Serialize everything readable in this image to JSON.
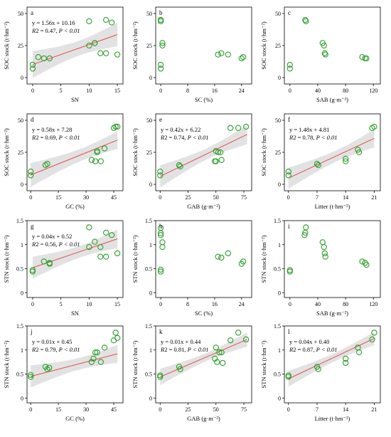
{
  "colors": {
    "points": "#2ca02c",
    "fit_line": "#e05050",
    "ci_band": "#e2e2e2",
    "axis": "#000000"
  },
  "chart_data": [
    {
      "type": "scatter",
      "label": "a",
      "xlabel": "SN",
      "ylabel": "SOC stock (t·hm⁻²)",
      "xlim": [
        -1,
        16
      ],
      "ylim": [
        -5,
        55
      ],
      "xticks": [
        0,
        5,
        10,
        15
      ],
      "yticks": [
        0,
        25,
        50
      ],
      "equation": "y = 1.56x + 10.16",
      "r2_prefix": "R",
      "r2_value": "2 = 0.47, ",
      "p_text": "P < 0.01",
      "fit": {
        "slope": 1.56,
        "intercept": 10.16,
        "x_range": [
          0,
          15
        ]
      },
      "x": [
        0,
        0,
        1,
        2,
        3,
        10,
        10,
        11,
        11,
        12,
        13,
        13,
        14,
        15
      ],
      "y": [
        7,
        10,
        16,
        15,
        15,
        25,
        44,
        27,
        27,
        19,
        45,
        19,
        43,
        18
      ]
    },
    {
      "type": "scatter",
      "label": "b",
      "xlabel": "SC (%)",
      "ylabel": "SOC stock (t·hm⁻²)",
      "xlim": [
        -1.5,
        27
      ],
      "ylim": [
        -5,
        55
      ],
      "xticks": [
        0,
        8,
        16,
        24
      ],
      "yticks": [
        0,
        25,
        50
      ],
      "equation": "",
      "r2_prefix": "",
      "r2_value": "",
      "p_text": "",
      "fit": null,
      "x": [
        0,
        0,
        0,
        0,
        0,
        0.5,
        0.5,
        17,
        18,
        20,
        24,
        24.5
      ],
      "y": [
        7,
        10,
        44,
        45,
        45,
        27,
        25,
        18,
        19,
        18,
        15,
        16
      ]
    },
    {
      "type": "scatter",
      "label": "c",
      "xlabel": "SAB (g·m⁻²)",
      "ylabel": "SOC stock (t·hm⁻²)",
      "xlim": [
        -8,
        130
      ],
      "ylim": [
        -5,
        55
      ],
      "xticks": [
        0,
        40,
        80,
        120
      ],
      "yticks": [
        0,
        25,
        50
      ],
      "equation": "",
      "r2_prefix": "",
      "r2_value": "",
      "p_text": "",
      "fit": null,
      "x": [
        0,
        0,
        22,
        23,
        47,
        49,
        50,
        51,
        104,
        108,
        110
      ],
      "y": [
        7,
        10,
        45,
        44,
        27,
        25,
        19,
        18,
        16,
        15,
        15
      ]
    },
    {
      "type": "scatter",
      "label": "d",
      "xlabel": "GC (%)",
      "ylabel": "SOC stock (t·hm⁻²)",
      "xlim": [
        -2,
        50
      ],
      "ylim": [
        -5,
        55
      ],
      "xticks": [
        0,
        15,
        30,
        45
      ],
      "yticks": [
        0,
        25,
        50
      ],
      "equation": "y = 0.58x + 7.28",
      "r2_prefix": "R",
      "r2_value": "2 = 0.69, ",
      "p_text": "P < 0.01",
      "fit": {
        "slope": 0.58,
        "intercept": 7.28,
        "x_range": [
          0,
          47
        ]
      },
      "x": [
        0,
        0,
        8,
        9,
        33,
        35,
        36,
        36,
        38,
        40,
        45,
        46,
        47
      ],
      "y": [
        7,
        10,
        15,
        16,
        19,
        18,
        25,
        26,
        18,
        28,
        44,
        45,
        45
      ]
    },
    {
      "type": "scatter",
      "label": "e",
      "xlabel": "GAB (g·m⁻²)",
      "ylabel": "SOC stock (t·hm⁻²)",
      "xlim": [
        -4,
        82
      ],
      "ylim": [
        -5,
        55
      ],
      "xticks": [
        0,
        25,
        50,
        75
      ],
      "yticks": [
        0,
        25,
        50
      ],
      "equation": "y = 0.42x + 6.22",
      "r2_prefix": "R",
      "r2_value": "2 = 0.74, ",
      "p_text": "P < 0.01",
      "fit": {
        "slope": 0.42,
        "intercept": 6.22,
        "x_range": [
          0,
          78
        ]
      },
      "x": [
        0,
        0,
        17,
        18,
        49,
        50,
        50,
        52,
        54,
        55,
        63,
        70,
        77
      ],
      "y": [
        7,
        10,
        15,
        14,
        18,
        26,
        18,
        25,
        25,
        19,
        44,
        44,
        45
      ]
    },
    {
      "type": "scatter",
      "label": "f",
      "xlabel": "Litter (t·hm⁻²)",
      "ylabel": "SOC stock (t·hm⁻²)",
      "xlim": [
        -1,
        22.5
      ],
      "ylim": [
        -5,
        55
      ],
      "xticks": [
        0,
        7,
        14,
        21
      ],
      "yticks": [
        0,
        25,
        50
      ],
      "equation": "y = 1.48x + 4.81",
      "r2_prefix": "R",
      "r2_value": "2 = 0.78, ",
      "p_text": "P < 0.01",
      "fit": {
        "slope": 1.48,
        "intercept": 4.81,
        "x_range": [
          0,
          21
        ]
      },
      "x": [
        0,
        0,
        7,
        7.3,
        14,
        14,
        17,
        17.3,
        20.5,
        21
      ],
      "y": [
        7,
        10,
        16,
        15,
        20,
        18,
        27,
        25,
        44,
        45
      ]
    },
    {
      "type": "scatter",
      "label": "g",
      "xlabel": "SN",
      "ylabel": "STN stock (t·hm⁻²)",
      "xlim": [
        -1,
        16
      ],
      "ylim": [
        -0.1,
        1.5
      ],
      "xticks": [
        0,
        5,
        10,
        15
      ],
      "yticks": [
        0.0,
        0.5,
        1.0,
        1.5
      ],
      "equation": "y = 0.04x + 0.52",
      "r2_prefix": "R",
      "r2_value": "2 = 0.56, ",
      "p_text": "P < 0.01",
      "fit": {
        "slope": 0.04,
        "intercept": 0.52,
        "x_range": [
          0,
          15
        ]
      },
      "x": [
        0,
        0,
        2,
        3,
        3,
        10,
        10,
        11,
        12,
        12,
        13,
        13,
        14,
        15
      ],
      "y": [
        0.44,
        0.47,
        0.65,
        0.6,
        0.62,
        1.36,
        0.95,
        1.06,
        0.95,
        0.75,
        1.25,
        0.75,
        1.2,
        0.82
      ]
    },
    {
      "type": "scatter",
      "label": "h",
      "xlabel": "SC (%)",
      "ylabel": "STN stock (t·hm⁻²)",
      "xlim": [
        -1.5,
        27
      ],
      "ylim": [
        -0.1,
        1.5
      ],
      "xticks": [
        0,
        8,
        16,
        24
      ],
      "yticks": [
        0.0,
        0.5,
        1.0,
        1.5
      ],
      "equation": "",
      "r2_prefix": "",
      "r2_value": "",
      "p_text": "",
      "fit": null,
      "x": [
        0,
        0,
        0,
        0,
        0,
        0.5,
        0.5,
        17,
        18,
        20,
        24,
        24.5
      ],
      "y": [
        0.44,
        0.48,
        1.2,
        1.24,
        1.35,
        1.05,
        0.95,
        0.75,
        0.73,
        0.82,
        0.6,
        0.65
      ]
    },
    {
      "type": "scatter",
      "label": "i",
      "xlabel": "SAB (g·m⁻²)",
      "ylabel": "STN stock (t·hm⁻²)",
      "xlim": [
        -8,
        130
      ],
      "ylim": [
        -0.1,
        1.5
      ],
      "xticks": [
        0,
        40,
        80,
        120
      ],
      "yticks": [
        0.0,
        0.5,
        1.0,
        1.5
      ],
      "equation": "",
      "r2_prefix": "",
      "r2_value": "",
      "p_text": "",
      "fit": null,
      "x": [
        0,
        0,
        21,
        22,
        23,
        47,
        49,
        50,
        51,
        104,
        108,
        110
      ],
      "y": [
        0.44,
        0.47,
        1.2,
        1.25,
        1.36,
        1.05,
        0.95,
        0.82,
        0.75,
        0.65,
        0.62,
        0.58
      ]
    },
    {
      "type": "scatter",
      "label": "j",
      "xlabel": "GC (%)",
      "ylabel": "STN stock (t·hm⁻²)",
      "xlim": [
        -2,
        50
      ],
      "ylim": [
        -0.1,
        1.5
      ],
      "xticks": [
        0,
        15,
        30,
        45
      ],
      "yticks": [
        0.0,
        0.5,
        1.0,
        1.5
      ],
      "equation": "y = 0.01x + 0.45",
      "r2_prefix": "R",
      "r2_value": "2 = 0.79, ",
      "p_text": "P < 0.01",
      "fit": {
        "slope": 0.01,
        "intercept": 0.45,
        "x_range": [
          0,
          47
        ]
      },
      "x": [
        0,
        0,
        8,
        9,
        10,
        33,
        34,
        35,
        36,
        38,
        40,
        45,
        46,
        47
      ],
      "y": [
        0.44,
        0.48,
        0.65,
        0.6,
        0.63,
        0.75,
        0.82,
        0.95,
        0.95,
        0.75,
        1.05,
        1.2,
        1.36,
        1.25
      ]
    },
    {
      "type": "scatter",
      "label": "k",
      "xlabel": "GAB (g·m⁻²)",
      "ylabel": "STN stock (t·hm⁻²)",
      "xlim": [
        -4,
        82
      ],
      "ylim": [
        -0.1,
        1.5
      ],
      "xticks": [
        0,
        25,
        50,
        75
      ],
      "yticks": [
        0.0,
        0.5,
        1.0,
        1.5
      ],
      "equation": "y = 0.01x + 0.44",
      "r2_prefix": "R",
      "r2_value": "2 = 0.81, ",
      "p_text": "P < 0.01",
      "fit": {
        "slope": 0.01,
        "intercept": 0.44,
        "x_range": [
          0,
          78
        ]
      },
      "x": [
        0,
        0,
        17,
        18,
        49,
        50,
        51,
        53,
        55,
        56,
        63,
        70,
        77
      ],
      "y": [
        0.44,
        0.47,
        0.65,
        0.6,
        0.82,
        1.05,
        0.75,
        0.95,
        0.95,
        0.73,
        1.2,
        1.36,
        1.22
      ]
    },
    {
      "type": "scatter",
      "label": "l",
      "xlabel": "Litter (t·hm⁻²)",
      "ylabel": "STN stock (t·hm⁻²)",
      "xlim": [
        -1,
        22.5
      ],
      "ylim": [
        -0.1,
        1.5
      ],
      "xticks": [
        0,
        7,
        14,
        21
      ],
      "yticks": [
        0.0,
        0.5,
        1.0,
        1.5
      ],
      "equation": "y = 0.04x + 0.40",
      "r2_prefix": "R",
      "r2_value": "2 = 0.87, ",
      "p_text": "P < 0.01",
      "fit": {
        "slope": 0.04,
        "intercept": 0.4,
        "x_range": [
          0,
          21
        ]
      },
      "x": [
        0,
        0,
        7,
        7.3,
        14,
        14,
        17,
        17.3,
        20.5,
        21
      ],
      "y": [
        0.44,
        0.47,
        0.65,
        0.6,
        0.82,
        0.73,
        1.05,
        0.95,
        1.22,
        1.36
      ]
    }
  ]
}
